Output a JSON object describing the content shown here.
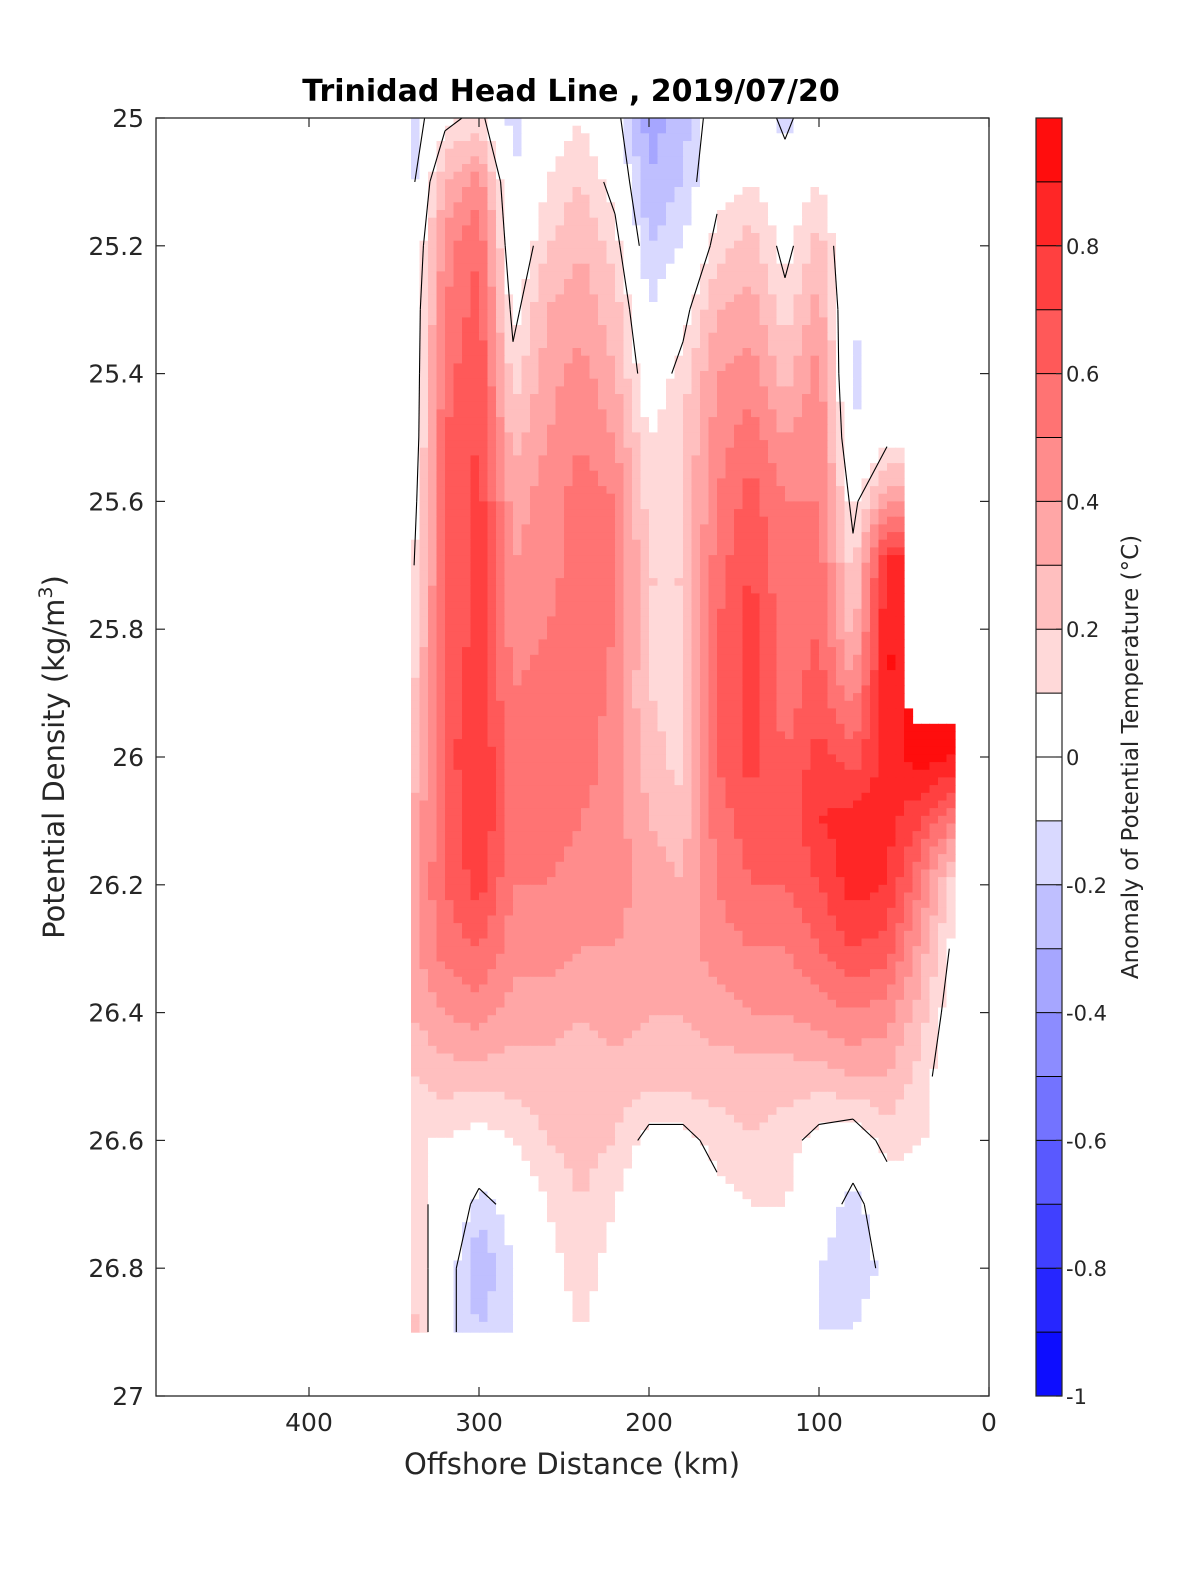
{
  "chart_data": {
    "type": "heatmap",
    "title": "Trinidad Head Line , 2019/07/20",
    "xlabel": "Offshore Distance (km)",
    "ylabel_main": "Potential Density (kg/m",
    "ylabel_sup": "3",
    "ylabel_close": ")",
    "colorbar_label": "Anomaly of Potential Temperature (°C)",
    "xlim": [
      490,
      0
    ],
    "ylim": [
      25,
      27
    ],
    "x_reversed": true,
    "y_reversed": true,
    "xticks": [
      400,
      300,
      200,
      100,
      0
    ],
    "xtick_labels": [
      "400",
      "300",
      "200",
      "100",
      "0"
    ],
    "yticks": [
      25,
      25.2,
      25.4,
      25.6,
      25.8,
      26,
      26.2,
      26.4,
      26.6,
      26.8,
      27
    ],
    "ytick_labels": [
      "25",
      "25.2",
      "25.4",
      "25.6",
      "25.8",
      "26",
      "26.2",
      "26.4",
      "26.6",
      "26.8",
      "27"
    ],
    "clim": [
      -1,
      1
    ],
    "colorbar_levels": 20,
    "colorbar_ticks": [
      -1,
      -0.8,
      -0.6,
      -0.4,
      -0.2,
      0,
      0.2,
      0.4,
      0.6,
      0.8
    ],
    "colorbar_tick_labels": [
      "-1",
      "-0.8",
      "-0.6",
      "-0.4",
      "-0.2",
      "0",
      "0.2",
      "0.4",
      "0.6",
      "0.8"
    ],
    "colormap": {
      "negative": "#0000ff",
      "zero": "#ffffff",
      "positive": "#ff0000"
    },
    "grid": false,
    "data_extent": {
      "x_min": 20,
      "x_max": 340,
      "y_min": 25,
      "y_max": 26.9
    },
    "x": [
      340,
      320,
      300,
      280,
      260,
      240,
      220,
      200,
      180,
      160,
      140,
      120,
      100,
      80,
      60,
      40,
      20
    ],
    "y": [
      25.0,
      25.1,
      25.2,
      25.3,
      25.4,
      25.5,
      25.6,
      25.7,
      25.8,
      25.9,
      26.0,
      26.1,
      26.2,
      26.3,
      26.4,
      26.5,
      26.6,
      26.7,
      26.8,
      26.9
    ],
    "z": [
      [
        -0.2,
        0.05,
        0.15,
        -0.15,
        0.0,
        0.1,
        -0.05,
        -0.35,
        -0.25,
        0.0,
        0.05,
        -0.15,
        0.05,
        -0.1,
        0.0,
        null,
        null
      ],
      [
        -0.15,
        0.3,
        0.45,
        -0.1,
        0.1,
        0.2,
        0.05,
        -0.3,
        -0.2,
        0.05,
        0.1,
        0.0,
        0.1,
        -0.1,
        0.05,
        null,
        null
      ],
      [
        -0.1,
        0.45,
        0.6,
        -0.05,
        0.2,
        0.3,
        0.15,
        -0.2,
        -0.1,
        0.15,
        0.25,
        0.05,
        0.25,
        -0.1,
        0.05,
        null,
        null
      ],
      [
        -0.05,
        0.5,
        0.65,
        0.05,
        0.3,
        0.35,
        0.25,
        -0.1,
        0.05,
        0.3,
        0.35,
        0.15,
        0.35,
        -0.1,
        0.05,
        null,
        null
      ],
      [
        -0.05,
        0.55,
        0.7,
        0.15,
        0.35,
        0.45,
        0.3,
        0.0,
        0.15,
        0.4,
        0.45,
        0.25,
        0.45,
        -0.15,
        0.05,
        null,
        null
      ],
      [
        -0.05,
        0.6,
        0.7,
        0.25,
        0.4,
        0.5,
        0.4,
        0.1,
        0.2,
        0.45,
        0.55,
        0.4,
        0.5,
        -0.1,
        0.05,
        null,
        null
      ],
      [
        0.0,
        0.6,
        0.75,
        0.35,
        0.45,
        0.55,
        0.5,
        0.15,
        0.2,
        0.5,
        0.65,
        0.5,
        0.5,
        0.05,
        0.4,
        null,
        null
      ],
      [
        0.05,
        0.6,
        0.75,
        0.4,
        0.45,
        0.55,
        0.5,
        0.2,
        0.2,
        0.55,
        0.7,
        0.5,
        0.55,
        0.15,
        0.85,
        null,
        null
      ],
      [
        0.1,
        0.6,
        0.75,
        0.45,
        0.5,
        0.6,
        0.5,
        0.2,
        0.2,
        0.6,
        0.75,
        0.55,
        0.6,
        0.25,
        0.9,
        null,
        null
      ],
      [
        0.15,
        0.65,
        0.75,
        0.5,
        0.55,
        0.6,
        0.45,
        0.2,
        0.15,
        0.6,
        0.75,
        0.55,
        0.65,
        0.45,
        0.9,
        null,
        null
      ],
      [
        0.2,
        0.65,
        0.8,
        0.55,
        0.6,
        0.55,
        0.45,
        0.25,
        0.15,
        0.6,
        0.75,
        0.6,
        0.75,
        0.65,
        0.85,
        0.95,
        0.9
      ],
      [
        0.3,
        0.6,
        0.8,
        0.55,
        0.55,
        0.5,
        0.45,
        0.3,
        0.25,
        0.55,
        0.65,
        0.6,
        0.8,
        0.85,
        0.85,
        0.7,
        0.5
      ],
      [
        0.35,
        0.6,
        0.75,
        0.5,
        0.5,
        0.45,
        0.45,
        0.35,
        0.3,
        0.5,
        0.6,
        0.6,
        0.7,
        0.85,
        0.8,
        0.5,
        0.1
      ],
      [
        0.35,
        0.55,
        0.6,
        0.45,
        0.45,
        0.4,
        0.4,
        0.35,
        0.35,
        0.45,
        0.5,
        0.5,
        0.6,
        0.7,
        0.65,
        0.35,
        0.05
      ],
      [
        0.3,
        0.4,
        0.45,
        0.35,
        0.35,
        0.3,
        0.35,
        0.3,
        0.3,
        0.35,
        0.4,
        0.4,
        0.45,
        0.5,
        0.45,
        0.25,
        0.0
      ],
      [
        0.2,
        0.25,
        0.25,
        0.25,
        0.25,
        0.25,
        0.25,
        0.25,
        0.25,
        0.25,
        0.25,
        0.25,
        0.25,
        0.3,
        0.3,
        0.15,
        0.0
      ],
      [
        0.1,
        0.1,
        0.05,
        0.1,
        0.2,
        0.25,
        0.2,
        0.05,
        0.05,
        0.15,
        0.2,
        0.15,
        0.05,
        0.0,
        0.15,
        0.1,
        null
      ],
      [
        0.15,
        0.05,
        -0.15,
        -0.05,
        0.1,
        0.2,
        0.1,
        -0.05,
        -0.05,
        0.05,
        0.1,
        0.1,
        0.0,
        -0.15,
        0.0,
        0.05,
        null
      ],
      [
        0.2,
        0.0,
        -0.3,
        -0.1,
        0.05,
        0.15,
        0.05,
        -0.05,
        -0.1,
        0.0,
        0.0,
        -0.05,
        -0.1,
        -0.2,
        -0.05,
        0.0,
        null
      ],
      [
        0.25,
        -0.05,
        -0.2,
        -0.1,
        0.05,
        0.1,
        0.05,
        -0.05,
        -0.05,
        0.0,
        0.0,
        0.0,
        -0.1,
        -0.1,
        0.0,
        0.0,
        null
      ]
    ]
  }
}
